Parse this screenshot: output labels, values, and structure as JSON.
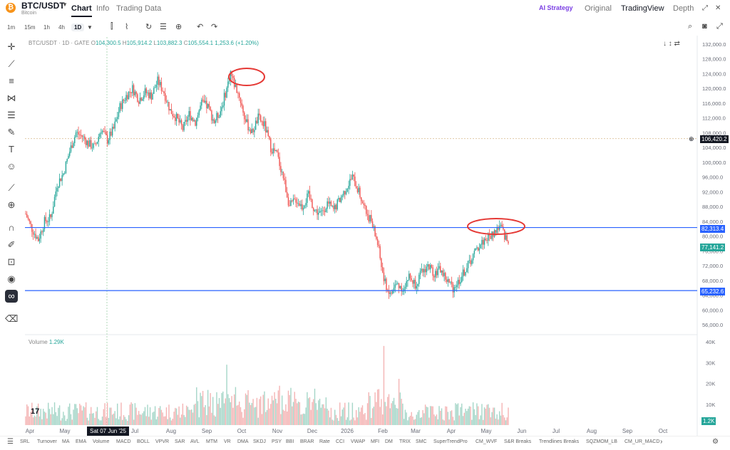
{
  "header": {
    "pair": "BTC/USDT",
    "subtitle": "Bitcoin",
    "coin_symbol": "₿",
    "tabs": [
      {
        "label": "Chart",
        "active": true
      },
      {
        "label": "Info",
        "active": false
      },
      {
        "label": "Trading Data",
        "active": false
      }
    ],
    "ai_strategy": "AI Strategy",
    "views": [
      {
        "label": "Original",
        "active": false
      },
      {
        "label": "TradingView",
        "active": true
      },
      {
        "label": "Depth",
        "active": false
      }
    ],
    "icons": [
      "expand-icon",
      "close-icon"
    ]
  },
  "toolbar": {
    "timeframes": [
      "1m",
      "15m",
      "1h",
      "4h",
      "1D"
    ],
    "selected": "1D",
    "icons": [
      "candle-type-icon",
      "indicators-icon",
      "replay-icon",
      "settings-icon",
      "alert-icon",
      "undo-icon",
      "redo-icon",
      "search-icon",
      "camera-icon",
      "fullscreen-icon"
    ]
  },
  "left_tools": [
    "crosshair-icon",
    "line-icon",
    "hlines-icon",
    "pattern-icon",
    "fib-icon",
    "brush-icon",
    "text-icon",
    "emoji-icon",
    "ruler-icon",
    "zoom-icon",
    "magnet-icon",
    "lock-draw-icon",
    "lock-icon",
    "eye-icon",
    "link-icon",
    "trash-icon"
  ],
  "legend": {
    "title": "BTC/USDT · 1D · GATE",
    "o_label": "O",
    "o": "104,300.5",
    "h_label": "H",
    "h": "105,914.2",
    "l_label": "L",
    "l": "103,882.3",
    "c_label": "C",
    "c": "105,554.1",
    "chg": "1,253.6 (+1.20%)"
  },
  "chart_data": {
    "type": "candlestick",
    "x_ticks": [
      "Apr",
      "May",
      "Jun",
      "Jul",
      "Aug",
      "Sep",
      "Oct",
      "Nov",
      "Dec",
      "2026",
      "Feb",
      "Mar",
      "Apr",
      "May",
      "Jun",
      "Jul",
      "Aug",
      "Sep",
      "Oct"
    ],
    "y_ticks": [
      "132,000.0",
      "128,000.0",
      "124,000.0",
      "120,000.0",
      "116,000.0",
      "112,000.0",
      "108,000.0",
      "104,000.0",
      "100,000.0",
      "96,000.0",
      "92,000.0",
      "88,000.0",
      "84,000.0",
      "80,000.0",
      "76,000.0",
      "72,000.0",
      "68,000.0",
      "64,000.0",
      "60,000.0",
      "56,000.0"
    ],
    "ylim": [
      56000,
      132000
    ],
    "price_path": [
      [
        0,
        86000
      ],
      [
        5,
        82000
      ],
      [
        10,
        79000
      ],
      [
        15,
        84000
      ],
      [
        20,
        85000
      ],
      [
        25,
        94000
      ],
      [
        30,
        97000
      ],
      [
        35,
        103000
      ],
      [
        40,
        108000
      ],
      [
        45,
        107000
      ],
      [
        50,
        105000
      ],
      [
        55,
        104000
      ],
      [
        60,
        109000
      ],
      [
        65,
        106000
      ],
      [
        70,
        109000
      ],
      [
        75,
        115000
      ],
      [
        80,
        118000
      ],
      [
        85,
        120000
      ],
      [
        90,
        117000
      ],
      [
        95,
        119000
      ],
      [
        100,
        118000
      ],
      [
        105,
        122000
      ],
      [
        110,
        119000
      ],
      [
        115,
        114000
      ],
      [
        120,
        112000
      ],
      [
        125,
        109000
      ],
      [
        130,
        113000
      ],
      [
        135,
        111000
      ],
      [
        140,
        116000
      ],
      [
        145,
        115000
      ],
      [
        150,
        111000
      ],
      [
        155,
        114000
      ],
      [
        160,
        120000
      ],
      [
        163,
        124500
      ],
      [
        165,
        122000
      ],
      [
        170,
        118000
      ],
      [
        175,
        111000
      ],
      [
        180,
        108000
      ],
      [
        185,
        112000
      ],
      [
        190,
        110000
      ],
      [
        195,
        104000
      ],
      [
        200,
        102000
      ],
      [
        205,
        96000
      ],
      [
        210,
        88000
      ],
      [
        215,
        90000
      ],
      [
        220,
        88000
      ],
      [
        225,
        91000
      ],
      [
        230,
        87000
      ],
      [
        235,
        86000
      ],
      [
        240,
        89000
      ],
      [
        245,
        87000
      ],
      [
        250,
        90000
      ],
      [
        255,
        93000
      ],
      [
        260,
        96000
      ],
      [
        265,
        92000
      ],
      [
        270,
        87000
      ],
      [
        275,
        84000
      ],
      [
        280,
        78000
      ],
      [
        285,
        68000
      ],
      [
        290,
        64000
      ],
      [
        295,
        67000
      ],
      [
        300,
        66000
      ],
      [
        305,
        69000
      ],
      [
        310,
        67000
      ],
      [
        315,
        70000
      ],
      [
        320,
        72000
      ],
      [
        325,
        70000
      ],
      [
        330,
        71000
      ],
      [
        335,
        68000
      ],
      [
        340,
        66000
      ],
      [
        345,
        68000
      ],
      [
        350,
        71000
      ],
      [
        355,
        74000
      ],
      [
        360,
        77000
      ],
      [
        365,
        79000
      ],
      [
        370,
        80000
      ],
      [
        375,
        82000
      ],
      [
        378,
        82500
      ],
      [
        381,
        80000
      ],
      [
        384,
        78000
      ]
    ],
    "volume_range": [
      0,
      40000
    ],
    "vol_ticks": [
      "40K",
      "30K",
      "20K",
      "10K"
    ],
    "levels": [
      {
        "label": "82,313.4",
        "value": 82313.4,
        "color": "#2962ff"
      },
      {
        "label": "65,232.6",
        "value": 65232.6,
        "color": "#2962ff"
      }
    ],
    "price_tags": [
      {
        "label": "106,420.2",
        "value": 106420.2,
        "color": "#131722"
      },
      {
        "label": "77,141.2",
        "value": 77141.2,
        "color": "#26a69a"
      }
    ],
    "annotations": [
      "red-circle-top",
      "red-circle-recent"
    ]
  },
  "volume": {
    "label": "Volume",
    "value": "1.29K",
    "tag": "1.2K"
  },
  "crosshair_date": "Sat 07 Jun '25",
  "indicators": [
    "SRL",
    "Turnover",
    "MA",
    "EMA",
    "Volume",
    "MACD",
    "BOLL",
    "VPVR",
    "SAR",
    "AVL",
    "MTM",
    "VR",
    "DMA",
    "SKDJ",
    "PSY",
    "BBI",
    "BRAR",
    "Rate",
    "CCI",
    "VWAP",
    "MFI",
    "DM",
    "TRIX",
    "SMC",
    "SuperTrendPro",
    "CM_WVF",
    "S&R Breaks",
    "Trendlines Breaks",
    "SQZMOM_LB",
    "CM_UR_MACD"
  ]
}
